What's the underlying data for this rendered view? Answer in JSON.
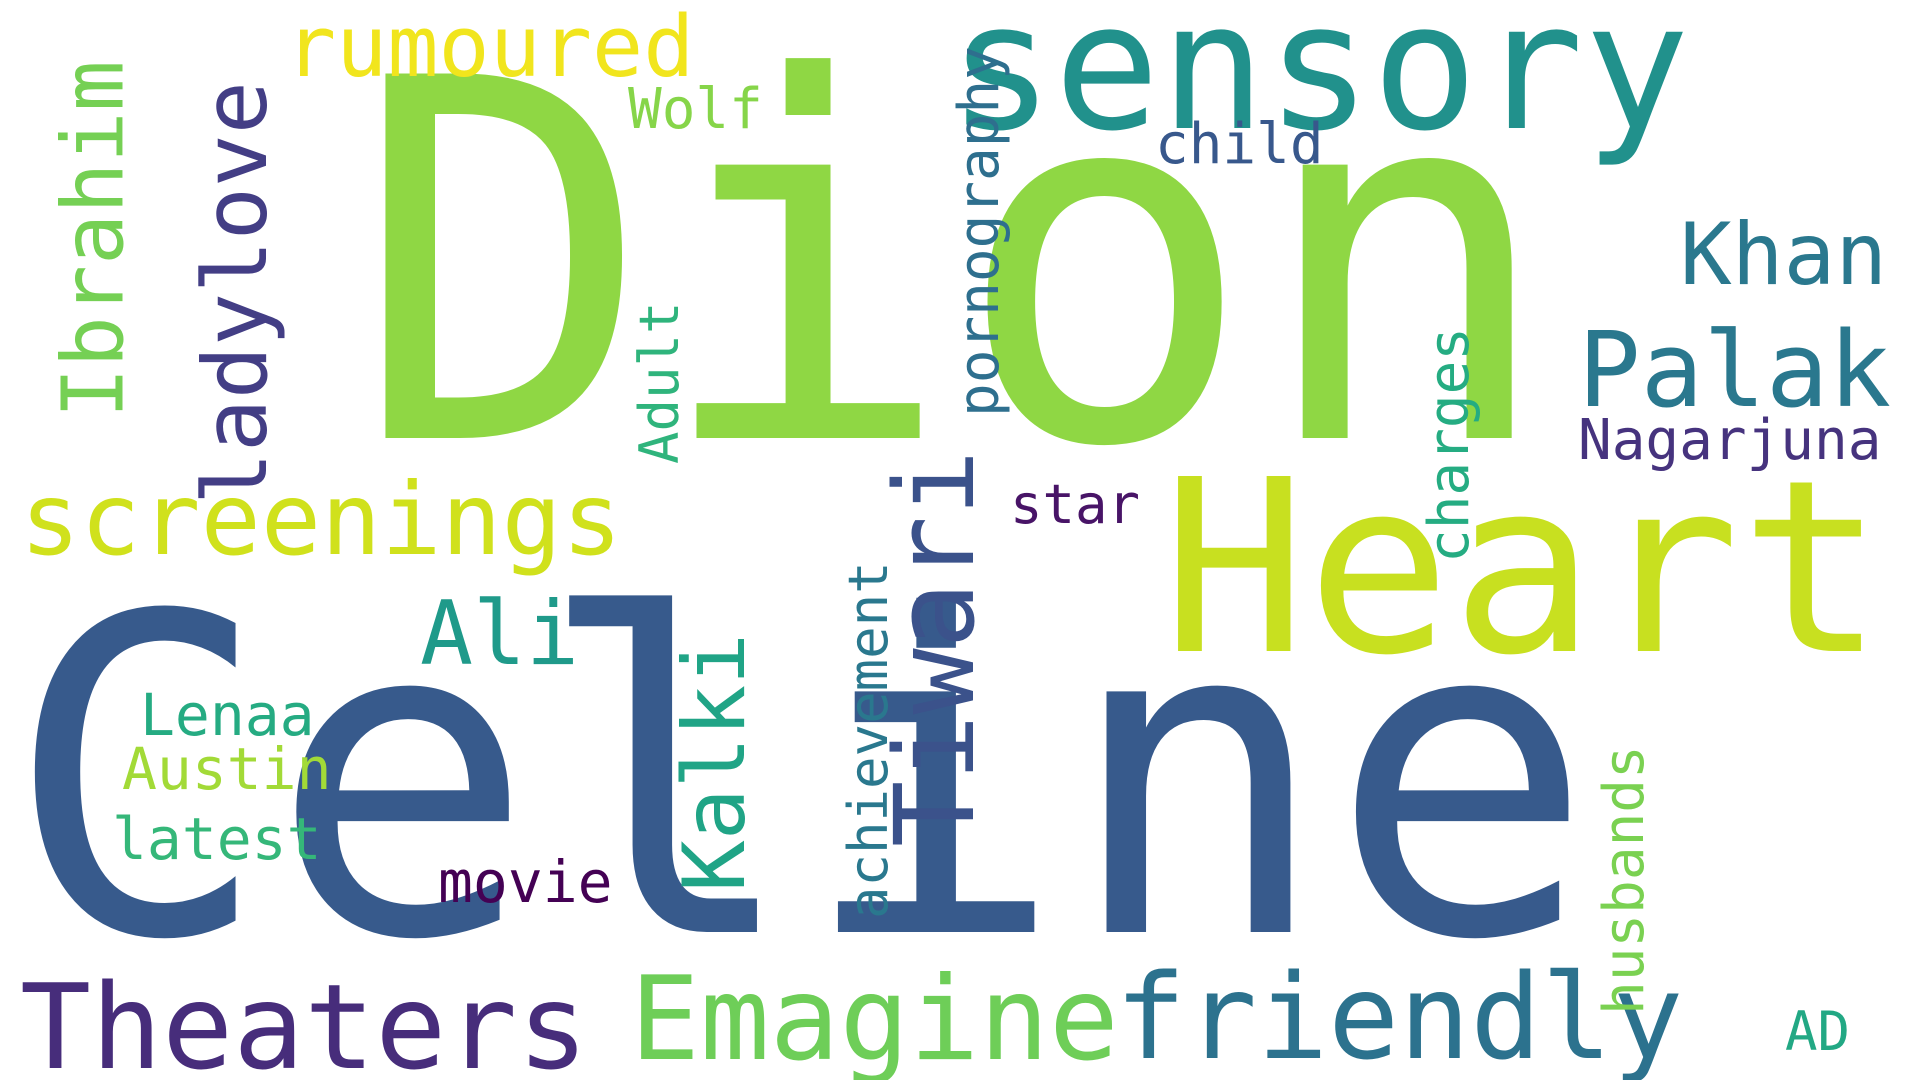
{
  "words": {
    "celine": {
      "text": "Celine",
      "color": "#375a8c",
      "orientation": "horizontal"
    },
    "dion": {
      "text": "Dion",
      "color": "#8fd744",
      "orientation": "horizontal"
    },
    "heart": {
      "text": "Heart",
      "color": "#c8e020",
      "orientation": "horizontal"
    },
    "sensory": {
      "text": "sensory",
      "color": "#21918c",
      "orientation": "horizontal"
    },
    "theaters": {
      "text": "Theaters",
      "color": "#472d7b",
      "orientation": "horizontal"
    },
    "emagine": {
      "text": "Emagine",
      "color": "#6ece58",
      "orientation": "horizontal"
    },
    "friendly": {
      "text": "friendly",
      "color": "#2c728e",
      "orientation": "horizontal"
    },
    "screenings": {
      "text": "screenings",
      "color": "#d0e11c",
      "orientation": "horizontal"
    },
    "rumoured": {
      "text": "rumoured",
      "color": "#f1e51d",
      "orientation": "horizontal"
    },
    "palak": {
      "text": "Palak",
      "color": "#2a788e",
      "orientation": "horizontal"
    },
    "khan": {
      "text": "Khan",
      "color": "#2a788e",
      "orientation": "horizontal"
    },
    "ali": {
      "text": "Ali",
      "color": "#1f9a8a",
      "orientation": "horizontal"
    },
    "nagarjuna": {
      "text": "Nagarjuna",
      "color": "#46337e",
      "orientation": "horizontal"
    },
    "lenaa": {
      "text": "Lenaa",
      "color": "#25ab82",
      "orientation": "horizontal"
    },
    "austin": {
      "text": "Austin",
      "color": "#a2da37",
      "orientation": "horizontal"
    },
    "latest": {
      "text": "latest",
      "color": "#35b779",
      "orientation": "horizontal"
    },
    "movie": {
      "text": "movie",
      "color": "#440154",
      "orientation": "horizontal"
    },
    "child": {
      "text": "child",
      "color": "#38588c",
      "orientation": "horizontal"
    },
    "star": {
      "text": "star",
      "color": "#481467",
      "orientation": "horizontal"
    },
    "wolf": {
      "text": "Wolf",
      "color": "#86d549",
      "orientation": "horizontal"
    },
    "ad": {
      "text": "AD",
      "color": "#22a884",
      "orientation": "horizontal"
    },
    "ibrahim": {
      "text": "Ibrahim",
      "color": "#75d054",
      "orientation": "vertical"
    },
    "ladylove": {
      "text": "ladylove",
      "color": "#433e85",
      "orientation": "vertical"
    },
    "pornography": {
      "text": "pornography",
      "color": "#2e6f8e",
      "orientation": "vertical"
    },
    "adult": {
      "text": "Adult",
      "color": "#2fb47c",
      "orientation": "vertical"
    },
    "kalki": {
      "text": "Kalki",
      "color": "#20a486",
      "orientation": "vertical"
    },
    "tiwari": {
      "text": "Tiwari",
      "color": "#3b528b",
      "orientation": "vertical"
    },
    "achievement": {
      "text": "achievement",
      "color": "#2a788e",
      "orientation": "vertical"
    },
    "charges": {
      "text": "charges",
      "color": "#25ac82",
      "orientation": "vertical"
    },
    "husbands": {
      "text": "husbands",
      "color": "#7ad151",
      "orientation": "vertical"
    }
  }
}
